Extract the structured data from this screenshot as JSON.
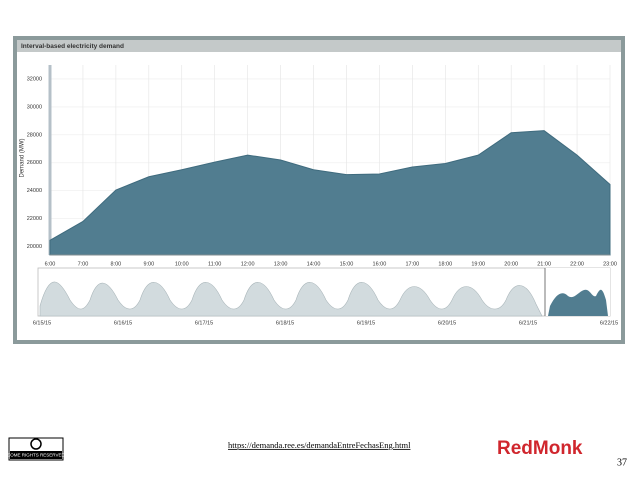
{
  "chart_data": {
    "type": "area",
    "title": "Interval-based electricity demand",
    "y_label": "Demand (MW)",
    "categories": [
      "6:00",
      "7:00",
      "8:00",
      "9:00",
      "10:00",
      "11:00",
      "12:00",
      "13:00",
      "14:00",
      "15:00",
      "16:00",
      "17:00",
      "18:00",
      "19:00",
      "20:00",
      "21:00",
      "22:00",
      "23:00"
    ],
    "values": [
      20450,
      21800,
      24050,
      25000,
      25500,
      26050,
      26550,
      26200,
      25500,
      25150,
      25200,
      25700,
      25950,
      26550,
      28150,
      28300,
      26550,
      24450
    ],
    "color": "#517d90",
    "ylim": [
      19400,
      33000
    ],
    "yticks": [
      20000,
      22000,
      24000,
      26000,
      28000,
      30000,
      32000
    ],
    "grid": true,
    "navigator_dates": [
      "6/15/15",
      "6/16/15",
      "6/17/15",
      "6/18/15",
      "6/19/15",
      "6/20/15",
      "6/21/15",
      "6/22/15"
    ]
  },
  "slide": {
    "url": "https://demanda.ree.es/demandaEntreFechasEng.html",
    "license": "SOME RIGHTS RESERVED",
    "logo": "RedMonk",
    "page_number": "37"
  }
}
